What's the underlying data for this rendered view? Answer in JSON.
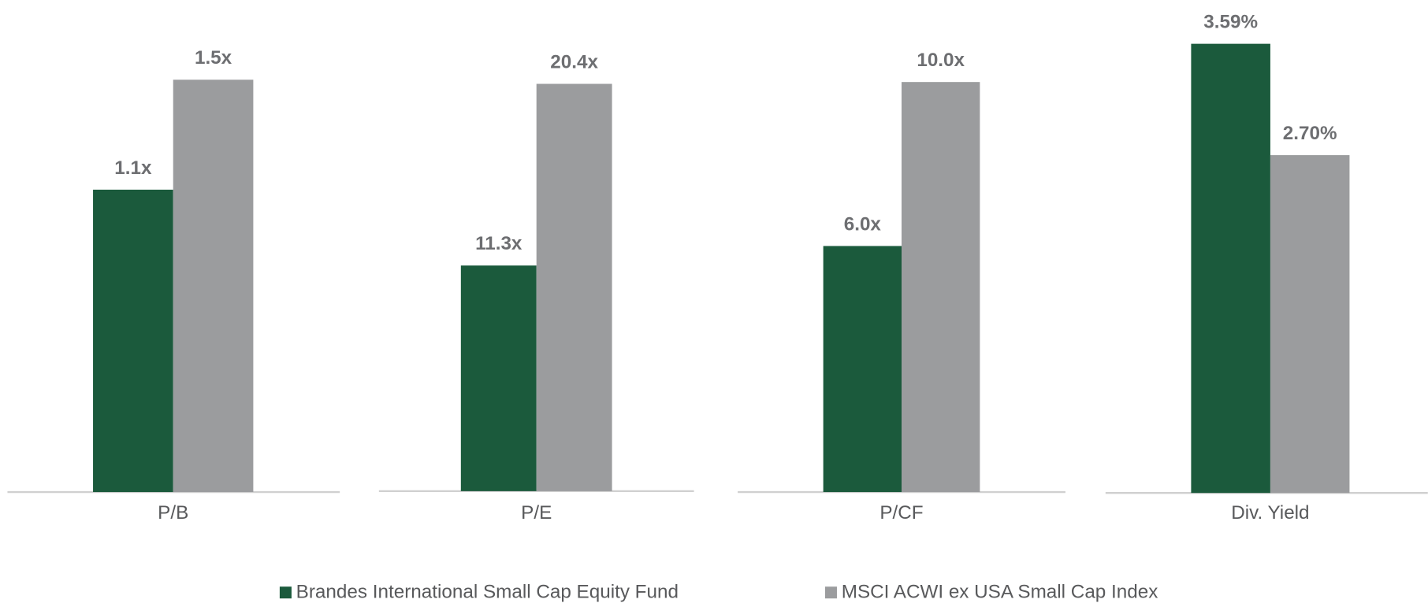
{
  "chart_data": {
    "type": "bar",
    "categories": [
      "P/B",
      "P/E",
      "P/CF",
      "Div. Yield"
    ],
    "ylim": [
      [
        0,
        1.79
      ],
      [
        0,
        24.6
      ],
      [
        0,
        12.0
      ],
      [
        0,
        3.94
      ]
    ],
    "series": [
      {
        "name": "Brandes International Small Cap Equity Fund",
        "color": "#1b5a3c",
        "values": [
          1.1,
          11.3,
          6.0,
          3.59
        ],
        "value_labels": [
          "1.1x",
          "11.3x",
          "6.0x",
          "3.59%"
        ]
      },
      {
        "name": "MSCI ACWI ex USA Small Cap Index",
        "color": "#9b9c9e",
        "values": [
          1.5,
          20.4,
          10.0,
          2.7
        ],
        "value_labels": [
          "1.5x",
          "20.4x",
          "10.0x",
          "2.70%"
        ]
      }
    ]
  }
}
